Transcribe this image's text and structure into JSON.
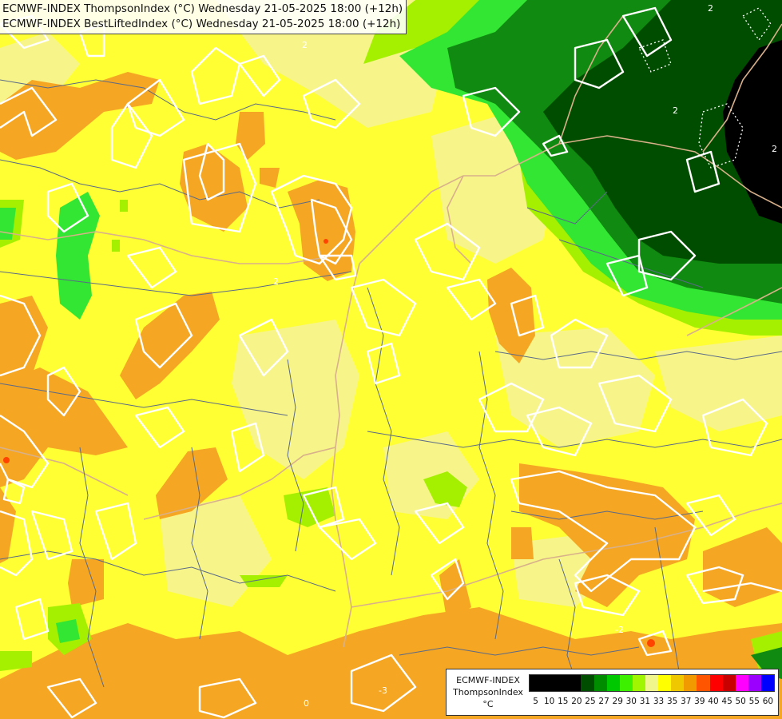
{
  "header": {
    "line1": "ECMWF-INDEX ThompsonIndex (°C) Wednesday 21-05-2025 18:00 (+12h)",
    "line2": "ECMWF-INDEX BestLiftedIndex (°C) Wednesday 21-05-2025 18:00 (+12h)"
  },
  "map_labels": {
    "c1": "2",
    "c2": "2",
    "c3": "2",
    "c4": "2",
    "c5": "2",
    "c6": "-2",
    "c7": "-3",
    "c8": "0"
  },
  "legend": {
    "title_line1": "ECMWF-INDEX",
    "title_line2": "ThompsonIndex",
    "unit": "°C",
    "ticks": [
      "5",
      "10",
      "15",
      "20",
      "25",
      "27",
      "29",
      "30",
      "31",
      "33",
      "35",
      "37",
      "39",
      "40",
      "45",
      "50",
      "55",
      "60"
    ],
    "colors": [
      "#000000",
      "#000000",
      "#000000",
      "#000000",
      "#004d00",
      "#008c00",
      "#00c800",
      "#3cf000",
      "#a0f500",
      "#f0f58c",
      "#ffff00",
      "#f0c800",
      "#f09a00",
      "#ff5500",
      "#ff0000",
      "#c80000",
      "#ff00ff",
      "#9b00ff",
      "#0000ff"
    ]
  },
  "colors": {
    "orange": "#f5a623",
    "yellow": "#ffff33",
    "pale_yellow": "#f7f58a",
    "light_green": "#a5f000",
    "green": "#33e633",
    "dark_green": "#108a10",
    "darker_green": "#004d00",
    "black": "#000000"
  }
}
